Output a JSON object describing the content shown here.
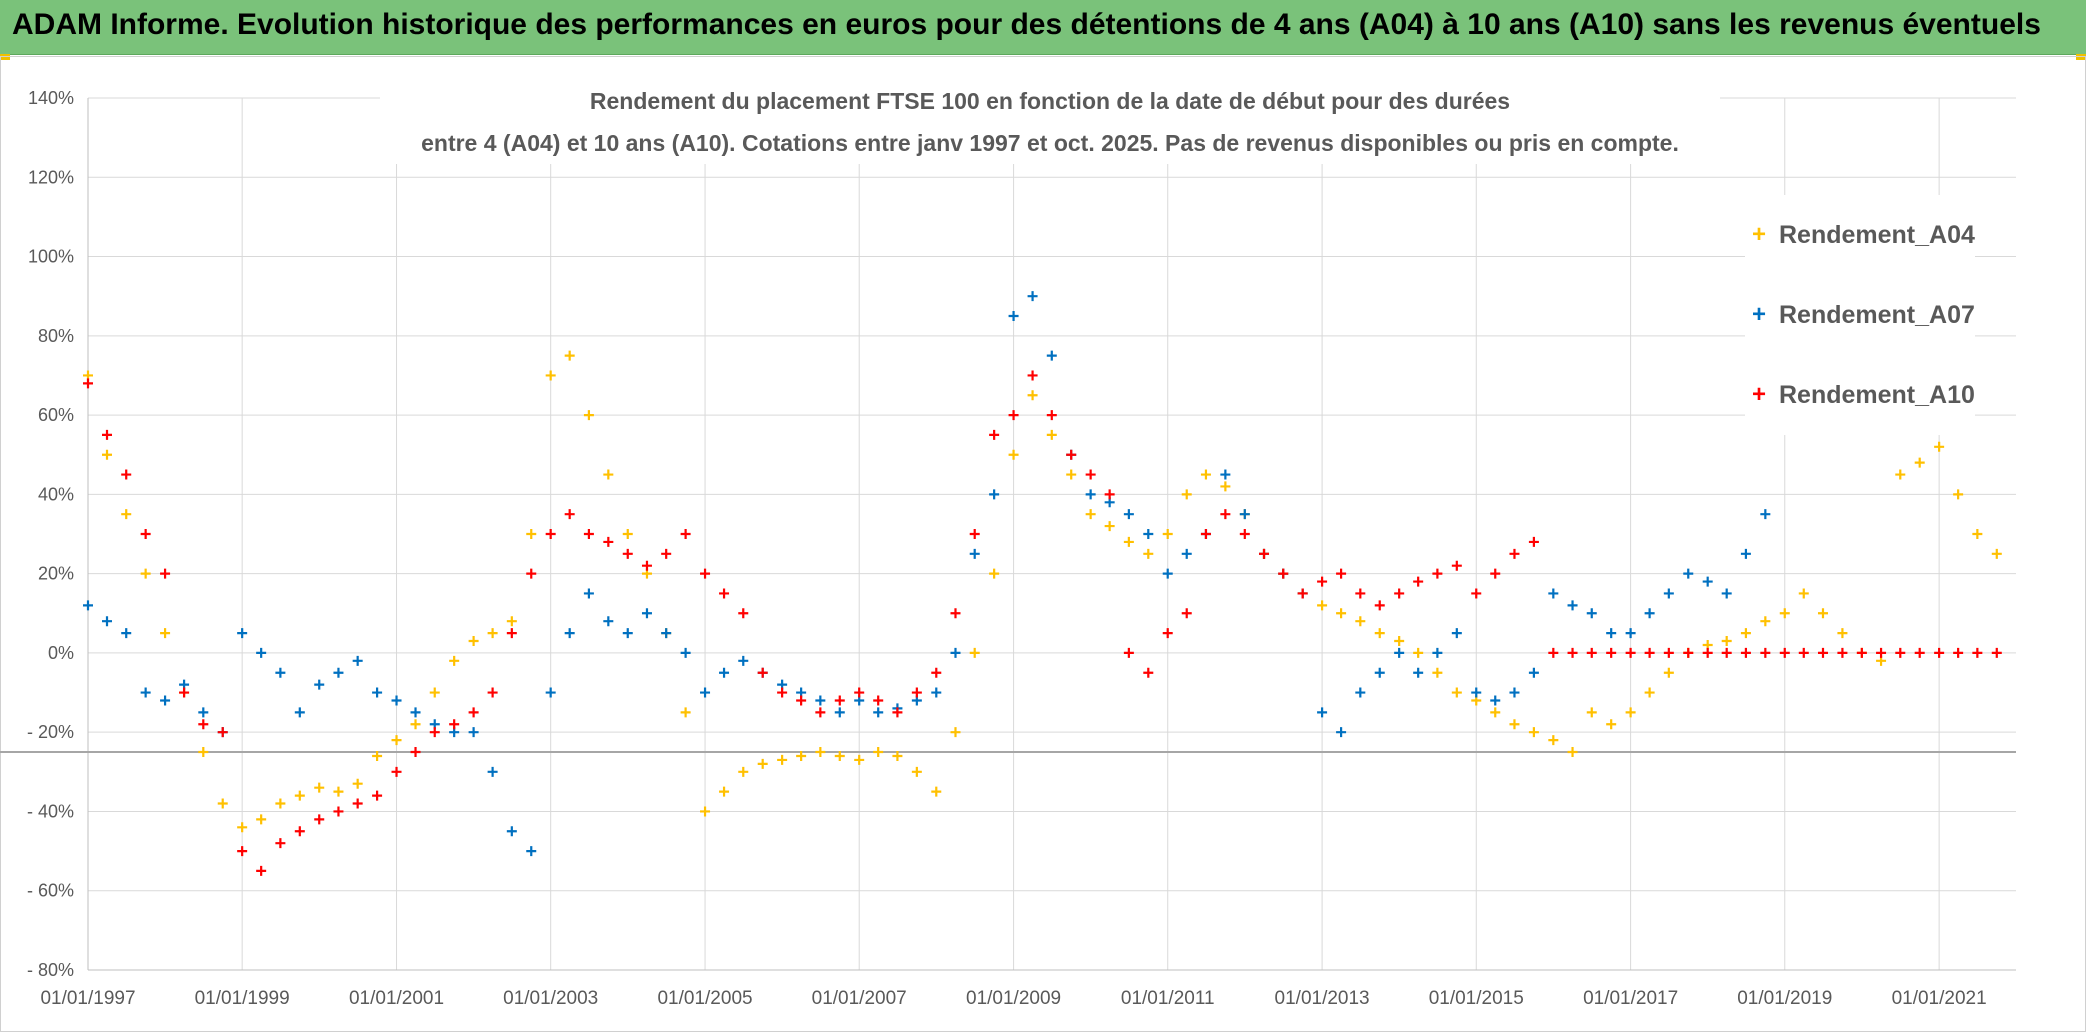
{
  "header": {
    "title": "ADAM Informe. Evolution historique des performances en euros pour des détentions de 4 ans (A04) à 10 ans (A10) sans les revenus éventuels"
  },
  "chart_data": {
    "type": "scatter",
    "title_line1": "Rendement du placement FTSE 100 en fonction de la date de début pour des durées",
    "title_line2": "entre 4 (A04) et 10 ans (A10). Cotations entre janv 1997 et oct. 2025. Pas de revenus disponibles ou pris en compte.",
    "xlabel": "",
    "ylabel": "",
    "x_range": [
      "01/01/1997",
      "31/12/2021"
    ],
    "ylim": [
      -80,
      140
    ],
    "y_ticks": [
      140,
      120,
      100,
      80,
      60,
      40,
      20,
      0,
      -20,
      -40,
      -60,
      -80
    ],
    "y_tick_labels": [
      "140%",
      "120%",
      "100%",
      "80%",
      "60%",
      "40%",
      "20%",
      "0%",
      "- 20%",
      "- 40%",
      "- 60%",
      "- 80%"
    ],
    "x_tick_labels": [
      "01/01/1997",
      "01/01/1999",
      "01/01/2001",
      "01/01/2003",
      "01/01/2005",
      "01/01/2007",
      "01/01/2009",
      "01/01/2011",
      "01/01/2013",
      "01/01/2015",
      "01/01/2017",
      "01/01/2019",
      "01/01/2021"
    ],
    "reference_line_y": -25,
    "grid": true,
    "legend_position": "top-right",
    "marker": "+",
    "series": [
      {
        "name": "Rendement_A04",
        "color": "#ffc000",
        "x": [
          "01/01/1997",
          "01/04/1997",
          "01/07/1997",
          "01/10/1997",
          "01/01/1998",
          "01/04/1998",
          "01/07/1998",
          "01/10/1998",
          "01/01/1999",
          "01/04/1999",
          "01/07/1999",
          "01/10/1999",
          "01/01/2000",
          "01/04/2000",
          "01/07/2000",
          "01/10/2000",
          "01/01/2001",
          "01/04/2001",
          "01/07/2001",
          "01/10/2001",
          "01/01/2002",
          "01/04/2002",
          "01/07/2002",
          "01/10/2002",
          "01/01/2003",
          "01/04/2003",
          "01/07/2003",
          "01/10/2003",
          "01/01/2004",
          "01/04/2004",
          "01/07/2004",
          "01/10/2004",
          "01/01/2005",
          "01/04/2005",
          "01/07/2005",
          "01/10/2005",
          "01/01/2006",
          "01/04/2006",
          "01/07/2006",
          "01/10/2006",
          "01/01/2007",
          "01/04/2007",
          "01/07/2007",
          "01/10/2007",
          "01/01/2008",
          "01/04/2008",
          "01/07/2008",
          "01/10/2008",
          "01/01/2009",
          "01/04/2009",
          "01/07/2009",
          "01/10/2009",
          "01/01/2010",
          "01/04/2010",
          "01/07/2010",
          "01/10/2010",
          "01/01/2011",
          "01/04/2011",
          "01/07/2011",
          "01/10/2011",
          "01/01/2012",
          "01/04/2012",
          "01/07/2012",
          "01/10/2012",
          "01/01/2013",
          "01/04/2013",
          "01/07/2013",
          "01/10/2013",
          "01/01/2014",
          "01/04/2014",
          "01/07/2014",
          "01/10/2014",
          "01/01/2015",
          "01/04/2015",
          "01/07/2015",
          "01/10/2015",
          "01/01/2016",
          "01/04/2016",
          "01/07/2016",
          "01/10/2016",
          "01/01/2017",
          "01/04/2017",
          "01/07/2017",
          "01/10/2017",
          "01/01/2018",
          "01/04/2018",
          "01/07/2018",
          "01/10/2018",
          "01/01/2019",
          "01/04/2019",
          "01/07/2019",
          "01/10/2019",
          "01/01/2020",
          "01/04/2020",
          "01/07/2020",
          "01/10/2020",
          "01/01/2021",
          "01/04/2021",
          "01/07/2021",
          "01/10/2021"
        ],
        "values": [
          70,
          50,
          35,
          20,
          5,
          -10,
          -25,
          -38,
          -44,
          -42,
          -38,
          -36,
          -34,
          -35,
          -33,
          -26,
          -22,
          -18,
          -10,
          -2,
          3,
          5,
          8,
          30,
          70,
          75,
          60,
          45,
          30,
          20,
          5,
          -15,
          -40,
          -35,
          -30,
          -28,
          -27,
          -26,
          -25,
          -26,
          -27,
          -25,
          -26,
          -30,
          -35,
          -20,
          0,
          20,
          50,
          65,
          55,
          45,
          35,
          32,
          28,
          25,
          30,
          40,
          45,
          42,
          35,
          25,
          20,
          15,
          12,
          10,
          8,
          5,
          3,
          0,
          -5,
          -10,
          -12,
          -15,
          -18,
          -20,
          -22,
          -25,
          -15,
          -18,
          -15,
          -10,
          -5,
          0,
          2,
          3,
          5,
          8,
          10,
          15,
          10,
          5,
          0,
          -2,
          45,
          48,
          52,
          40,
          30,
          25
        ]
      },
      {
        "name": "Rendement_A07",
        "color": "#0070c0",
        "x": [
          "01/01/1997",
          "01/04/1997",
          "01/07/1997",
          "01/10/1997",
          "01/01/1998",
          "01/04/1998",
          "01/07/1998",
          "01/10/1998",
          "01/01/1999",
          "01/04/1999",
          "01/07/1999",
          "01/10/1999",
          "01/01/2000",
          "01/04/2000",
          "01/07/2000",
          "01/10/2000",
          "01/01/2001",
          "01/04/2001",
          "01/07/2001",
          "01/10/2001",
          "01/01/2002",
          "01/04/2002",
          "01/07/2002",
          "01/10/2002",
          "01/01/2003",
          "01/04/2003",
          "01/07/2003",
          "01/10/2003",
          "01/01/2004",
          "01/04/2004",
          "01/07/2004",
          "01/10/2004",
          "01/01/2005",
          "01/04/2005",
          "01/07/2005",
          "01/10/2005",
          "01/01/2006",
          "01/04/2006",
          "01/07/2006",
          "01/10/2006",
          "01/01/2007",
          "01/04/2007",
          "01/07/2007",
          "01/10/2007",
          "01/01/2008",
          "01/04/2008",
          "01/07/2008",
          "01/10/2008",
          "01/01/2009",
          "01/04/2009",
          "01/07/2009",
          "01/10/2009",
          "01/01/2010",
          "01/04/2010",
          "01/07/2010",
          "01/10/2010",
          "01/01/2011",
          "01/04/2011",
          "01/07/2011",
          "01/10/2011",
          "01/01/2012",
          "01/04/2012",
          "01/07/2012",
          "01/10/2012",
          "01/01/2013",
          "01/04/2013",
          "01/07/2013",
          "01/10/2013",
          "01/01/2014",
          "01/04/2014",
          "01/07/2014",
          "01/10/2014",
          "01/01/2015",
          "01/04/2015",
          "01/07/2015",
          "01/10/2015",
          "01/01/2016",
          "01/04/2016",
          "01/07/2016",
          "01/10/2016",
          "01/01/2017",
          "01/04/2017",
          "01/07/2017",
          "01/10/2017",
          "01/01/2018",
          "01/04/2018",
          "01/07/2018",
          "01/10/2018"
        ],
        "values": [
          12,
          8,
          5,
          -10,
          -12,
          -8,
          -15,
          -20,
          5,
          0,
          -5,
          -15,
          -8,
          -5,
          -2,
          -10,
          -12,
          -15,
          -18,
          -20,
          -20,
          -30,
          -45,
          -50,
          -10,
          5,
          15,
          8,
          5,
          10,
          5,
          0,
          -10,
          -5,
          -2,
          -5,
          -8,
          -10,
          -12,
          -15,
          -12,
          -15,
          -14,
          -12,
          -10,
          0,
          25,
          40,
          85,
          90,
          75,
          50,
          40,
          38,
          35,
          30,
          20,
          25,
          30,
          45,
          35,
          25,
          20,
          15,
          -15,
          -20,
          -10,
          -5,
          0,
          -5,
          0,
          5,
          -10,
          -12,
          -10,
          -5,
          15,
          12,
          10,
          5,
          5,
          10,
          15,
          20,
          18,
          15,
          25,
          35
        ]
      },
      {
        "name": "Rendement_A10",
        "color": "#ff0000",
        "x": [
          "01/01/1997",
          "01/04/1997",
          "01/07/1997",
          "01/10/1997",
          "01/01/1998",
          "01/04/1998",
          "01/07/1998",
          "01/10/1998",
          "01/01/1999",
          "01/04/1999",
          "01/07/1999",
          "01/10/1999",
          "01/01/2000",
          "01/04/2000",
          "01/07/2000",
          "01/10/2000",
          "01/01/2001",
          "01/04/2001",
          "01/07/2001",
          "01/10/2001",
          "01/01/2002",
          "01/04/2002",
          "01/07/2002",
          "01/10/2002",
          "01/01/2003",
          "01/04/2003",
          "01/07/2003",
          "01/10/2003",
          "01/01/2004",
          "01/04/2004",
          "01/07/2004",
          "01/10/2004",
          "01/01/2005",
          "01/04/2005",
          "01/07/2005",
          "01/10/2005",
          "01/01/2006",
          "01/04/2006",
          "01/07/2006",
          "01/10/2006",
          "01/01/2007",
          "01/04/2007",
          "01/07/2007",
          "01/10/2007",
          "01/01/2008",
          "01/04/2008",
          "01/07/2008",
          "01/10/2008",
          "01/01/2009",
          "01/04/2009",
          "01/07/2009",
          "01/10/2009",
          "01/01/2010",
          "01/04/2010",
          "01/07/2010",
          "01/10/2010",
          "01/01/2011",
          "01/04/2011",
          "01/07/2011",
          "01/10/2011",
          "01/01/2012",
          "01/04/2012",
          "01/07/2012",
          "01/10/2012",
          "01/01/2013",
          "01/04/2013",
          "01/07/2013",
          "01/10/2013",
          "01/01/2014",
          "01/04/2014",
          "01/07/2014",
          "01/10/2014",
          "01/01/2015",
          "01/04/2015",
          "01/07/2015",
          "01/10/2015",
          "01/01/2016",
          "01/04/2016",
          "01/07/2016",
          "01/10/2016",
          "01/01/2017",
          "01/04/2017",
          "01/07/2017",
          "01/10/2017",
          "01/01/2018",
          "01/04/2018",
          "01/07/2018",
          "01/10/2018",
          "01/01/2019",
          "01/04/2019",
          "01/07/2019",
          "01/10/2019",
          "01/01/2020",
          "01/04/2020",
          "01/07/2020",
          "01/10/2020",
          "01/01/2021",
          "01/04/2021",
          "01/07/2021",
          "01/10/2021"
        ],
        "values": [
          68,
          55,
          45,
          30,
          20,
          -10,
          -18,
          -20,
          -50,
          -55,
          -48,
          -45,
          -42,
          -40,
          -38,
          -36,
          -30,
          -25,
          -20,
          -18,
          -15,
          -10,
          5,
          20,
          30,
          35,
          30,
          28,
          25,
          22,
          25,
          30,
          20,
          15,
          10,
          -5,
          -10,
          -12,
          -15,
          -12,
          -10,
          -12,
          -15,
          -10,
          -5,
          10,
          30,
          55,
          60,
          70,
          60,
          50,
          45,
          40,
          0,
          -5,
          5,
          10,
          30,
          35,
          30,
          25,
          20,
          15,
          18,
          20,
          15,
          12,
          15,
          18,
          20,
          22,
          15,
          20,
          25,
          28,
          0,
          0,
          0,
          0,
          0,
          0,
          0,
          0,
          0,
          0,
          0,
          0,
          0,
          0,
          0,
          0,
          0,
          0,
          0,
          0,
          0,
          0,
          0,
          0
        ]
      }
    ]
  }
}
